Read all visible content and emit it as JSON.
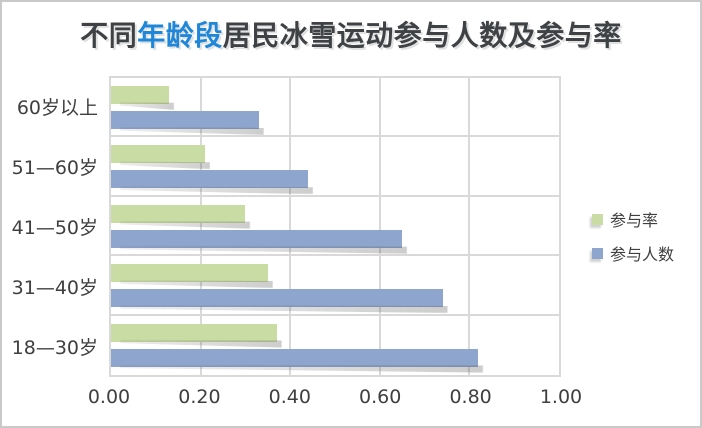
{
  "title": {
    "prefix": "不同",
    "highlight": "年龄段",
    "suffix": "居民冰雪运动参与人数及参与率",
    "full": "不同年龄段居民冰雪运动参与人数及参与率"
  },
  "legend": [
    {
      "label": "参与率",
      "color": "#c9dca3"
    },
    {
      "label": "参与人数",
      "color": "#8ea5ce"
    }
  ],
  "colors": {
    "title_text": "#3f4245",
    "title_highlight": "#1e87d9",
    "grid": "#d9d9d9",
    "axis_text": "#3f3f3f",
    "bar_rate_green": "#c9dca3",
    "bar_count_blue": "#8ea5ce",
    "frame_border": "#c9c9c9"
  },
  "chart_data": {
    "type": "bar",
    "orientation": "horizontal",
    "title": "不同年龄段居民冰雪运动参与人数及参与率",
    "categories": [
      "60岁以上",
      "51—60岁",
      "41—50岁",
      "31—40岁",
      "18—30岁"
    ],
    "series": [
      {
        "name": "参与率",
        "color": "#c9dca3",
        "values": [
          0.13,
          0.21,
          0.3,
          0.35,
          0.37
        ]
      },
      {
        "name": "参与人数",
        "color": "#8ea5ce",
        "values": [
          0.33,
          0.44,
          0.65,
          0.74,
          0.82
        ]
      }
    ],
    "xlabel": "",
    "ylabel": "",
    "xlim": [
      0,
      1
    ],
    "xticks": [
      "0.00",
      "0.20",
      "0.40",
      "0.60",
      "0.80",
      "1.00"
    ],
    "xtick_values": [
      0,
      0.2,
      0.4,
      0.6,
      0.8,
      1.0
    ],
    "grid": true,
    "legend_position": "right"
  }
}
